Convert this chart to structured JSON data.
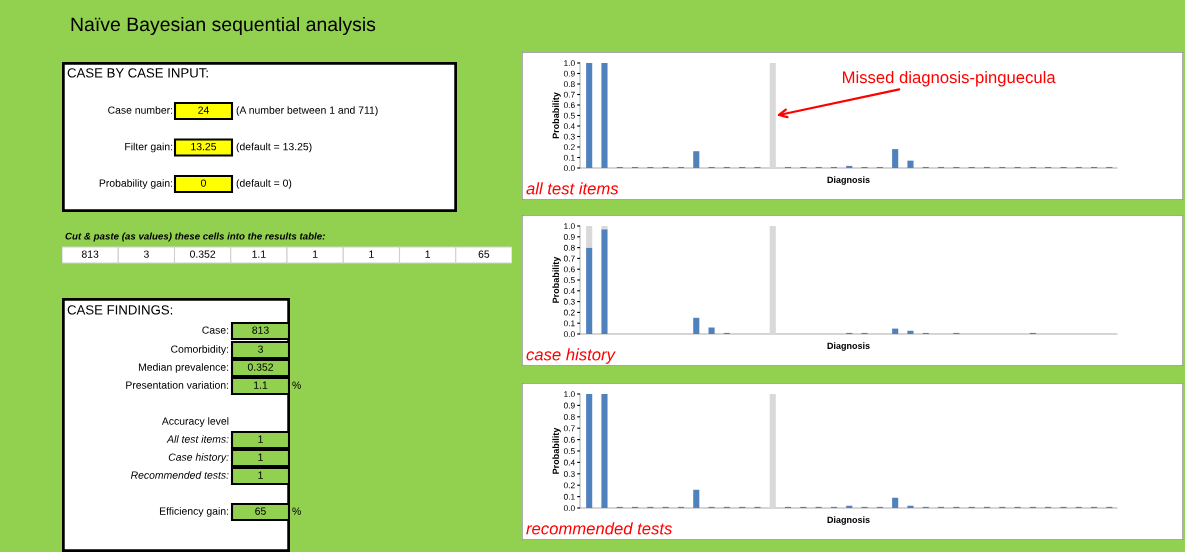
{
  "chart_data": [
    {
      "type": "other",
      "title": "Naïve Bayesian sequential analysis"
    },
    {
      "type": "other",
      "title": "CASE BY CASE INPUT:",
      "annotations": [
        "Case number:",
        "24",
        "(A number between 1 and 711)",
        "Filter gain:",
        "13.25",
        "(default = 13.25)",
        "Probability gain:",
        "0",
        "(default = 0)"
      ]
    },
    {
      "type": "other",
      "title": "Cut & paste (as values) these cells into the results table:",
      "annotations": [
        "813",
        "3",
        "0.352",
        "1.1",
        "1",
        "1",
        "1",
        "65"
      ]
    },
    {
      "type": "other",
      "title": "CASE FINDINGS:",
      "annotations": [
        "Case:",
        "813",
        "Comorbidity:",
        "3",
        "Median prevalence:",
        "0.352",
        "Presentation variation:",
        "1.1",
        "%",
        "Accuracy level",
        "All test items:",
        "1",
        "Case history:",
        "1",
        "Recommended tests:",
        "1",
        "Efficiency gain:",
        "65",
        "%"
      ]
    },
    {
      "type": "bar",
      "stacked": true,
      "xlabel": "Diagnosis",
      "ylabel": "Probability",
      "ylim": [
        0,
        1
      ],
      "yticks": [
        {
          "value": 0,
          "label": "0.0"
        },
        {
          "value": 0.1,
          "label": "0.1"
        },
        {
          "value": 0.2,
          "label": "0.2"
        },
        {
          "value": 0.3,
          "label": "0.3"
        },
        {
          "value": 0.4,
          "label": "0.4"
        },
        {
          "value": 0.5,
          "label": "0.5"
        },
        {
          "value": 0.6,
          "label": "0.6"
        },
        {
          "value": 0.7,
          "label": "0.7"
        },
        {
          "value": 0.8,
          "label": "0.8"
        },
        {
          "value": 0.9,
          "label": "0.9"
        },
        {
          "value": 1,
          "label": "1.0"
        }
      ],
      "categories": [
        null,
        null,
        null,
        null,
        null,
        null,
        null,
        null,
        null,
        null,
        null,
        null,
        null,
        null,
        null,
        null,
        null,
        null,
        null,
        null,
        null,
        null,
        null,
        null,
        null,
        null,
        null,
        null,
        null,
        null,
        null,
        null,
        null,
        null,
        null
      ],
      "series": [
        {
          "color": "#4f81bd",
          "values": [
            1,
            1,
            0.01,
            0.01,
            0.01,
            0.01,
            0.01,
            0.16,
            0.01,
            0.01,
            0.01,
            0.01,
            null,
            0.01,
            0.01,
            0.01,
            0.01,
            0.02,
            0.01,
            0.01,
            0.18,
            0.07,
            0.01,
            0.01,
            0.01,
            0.01,
            0.01,
            0.01,
            0.01,
            0.01,
            0.01,
            0.01,
            0.01,
            0.01,
            0.01
          ]
        },
        {
          "color": "#d9d9d9",
          "values": [
            null,
            null,
            null,
            null,
            null,
            null,
            null,
            null,
            null,
            null,
            null,
            null,
            1,
            null,
            null,
            null,
            null,
            null,
            null,
            null,
            null,
            null,
            null,
            null,
            null,
            null,
            null,
            null,
            null,
            null,
            null,
            null,
            null,
            null,
            null
          ]
        }
      ],
      "annotations": [
        "Missed diagnosis-pinguecula",
        "all test items"
      ]
    },
    {
      "type": "bar",
      "stacked": true,
      "xlabel": "Diagnosis",
      "ylabel": "Probability",
      "ylim": [
        0,
        1
      ],
      "yticks": [
        {
          "value": 0,
          "label": "0.0"
        },
        {
          "value": 0.1,
          "label": "0.1"
        },
        {
          "value": 0.2,
          "label": "0.2"
        },
        {
          "value": 0.3,
          "label": "0.3"
        },
        {
          "value": 0.4,
          "label": "0.4"
        },
        {
          "value": 0.5,
          "label": "0.5"
        },
        {
          "value": 0.6,
          "label": "0.6"
        },
        {
          "value": 0.7,
          "label": "0.7"
        },
        {
          "value": 0.8,
          "label": "0.8"
        },
        {
          "value": 0.9,
          "label": "0.9"
        },
        {
          "value": 1,
          "label": "1.0"
        }
      ],
      "categories": [
        null,
        null,
        null,
        null,
        null,
        null,
        null,
        null,
        null,
        null,
        null,
        null,
        null,
        null,
        null,
        null,
        null,
        null,
        null,
        null,
        null,
        null,
        null,
        null,
        null,
        null,
        null,
        null,
        null,
        null,
        null,
        null,
        null,
        null,
        null
      ],
      "series": [
        {
          "color": "#4f81bd",
          "values": [
            0.8,
            0.97,
            null,
            null,
            null,
            null,
            null,
            0.15,
            0.06,
            0.01,
            null,
            null,
            null,
            null,
            null,
            null,
            null,
            0.01,
            0.01,
            null,
            0.05,
            0.03,
            0.01,
            null,
            0.01,
            null,
            null,
            null,
            null,
            0.01,
            null,
            null,
            null,
            null,
            null
          ]
        },
        {
          "color": "#d9d9d9",
          "values": [
            0.2,
            0.03,
            null,
            null,
            null,
            null,
            null,
            null,
            null,
            null,
            null,
            null,
            1,
            null,
            null,
            null,
            null,
            null,
            null,
            null,
            null,
            null,
            null,
            null,
            null,
            null,
            null,
            null,
            null,
            null,
            null,
            null,
            null,
            null,
            null
          ]
        }
      ],
      "annotations": [
        "case history"
      ]
    },
    {
      "type": "bar",
      "stacked": true,
      "xlabel": "Diagnosis",
      "ylabel": "Probability",
      "ylim": [
        0,
        1
      ],
      "yticks": [
        {
          "value": 0,
          "label": "0.0"
        },
        {
          "value": 0.1,
          "label": "0.1"
        },
        {
          "value": 0.2,
          "label": "0.2"
        },
        {
          "value": 0.3,
          "label": "0.3"
        },
        {
          "value": 0.4,
          "label": "0.4"
        },
        {
          "value": 0.5,
          "label": "0.5"
        },
        {
          "value": 0.6,
          "label": "0.6"
        },
        {
          "value": 0.7,
          "label": "0.7"
        },
        {
          "value": 0.8,
          "label": "0.8"
        },
        {
          "value": 0.9,
          "label": "0.9"
        },
        {
          "value": 1,
          "label": "1.0"
        }
      ],
      "categories": [
        null,
        null,
        null,
        null,
        null,
        null,
        null,
        null,
        null,
        null,
        null,
        null,
        null,
        null,
        null,
        null,
        null,
        null,
        null,
        null,
        null,
        null,
        null,
        null,
        null,
        null,
        null,
        null,
        null,
        null,
        null,
        null,
        null,
        null,
        null
      ],
      "series": [
        {
          "color": "#4f81bd",
          "values": [
            1,
            1,
            0.01,
            0.01,
            0.01,
            0.01,
            0.01,
            0.16,
            0.01,
            0.01,
            0.01,
            0.01,
            null,
            0.01,
            0.01,
            0.01,
            0.01,
            0.02,
            0.01,
            0.01,
            0.09,
            0.02,
            0.01,
            0.01,
            0.01,
            0.01,
            0.01,
            0.01,
            0.01,
            0.01,
            0.01,
            0.01,
            0.01,
            0.01,
            0.01
          ]
        },
        {
          "color": "#d9d9d9",
          "values": [
            null,
            null,
            null,
            null,
            null,
            null,
            null,
            null,
            null,
            null,
            null,
            null,
            1,
            null,
            null,
            null,
            null,
            null,
            null,
            null,
            null,
            null,
            null,
            null,
            null,
            null,
            null,
            null,
            null,
            null,
            null,
            null,
            null,
            null,
            null
          ]
        }
      ],
      "annotations": [
        "recommended tests"
      ]
    }
  ]
}
